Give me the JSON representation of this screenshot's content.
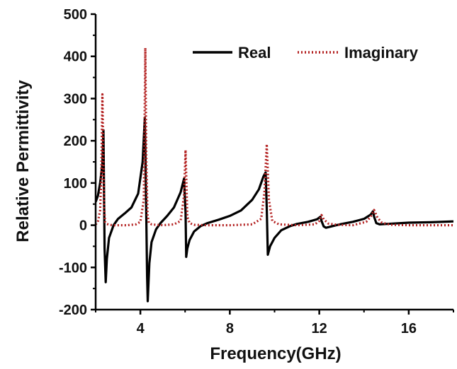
{
  "chart_data": {
    "type": "line",
    "title": "",
    "xlabel": "Frequency(GHz)",
    "ylabel": "Relative Permittivity",
    "xlim": [
      2,
      18
    ],
    "ylim": [
      -200,
      500
    ],
    "xticks": [
      4,
      8,
      12,
      16
    ],
    "yticks": [
      -200,
      -100,
      0,
      100,
      200,
      300,
      400,
      500
    ],
    "grid": false,
    "legend_position": "top-right",
    "series": [
      {
        "name": "Real",
        "color": "#000000",
        "style": "solid",
        "x": [
          2.0,
          2.1,
          2.2,
          2.3,
          2.35,
          2.4,
          2.45,
          2.5,
          2.6,
          2.8,
          3.0,
          3.3,
          3.6,
          3.9,
          4.1,
          4.2,
          4.25,
          4.3,
          4.33,
          4.4,
          4.5,
          4.7,
          4.9,
          5.2,
          5.5,
          5.8,
          5.95,
          6.02,
          6.05,
          6.1,
          6.2,
          6.4,
          6.7,
          7.0,
          7.5,
          8.0,
          8.5,
          9.0,
          9.3,
          9.5,
          9.6,
          9.65,
          9.7,
          9.8,
          10.0,
          10.3,
          10.7,
          11.0,
          11.5,
          11.9,
          12.05,
          12.1,
          12.2,
          12.3,
          12.6,
          13.0,
          13.5,
          14.0,
          14.3,
          14.4,
          14.45,
          14.55,
          14.7,
          15.0,
          16.0,
          17.0,
          18.0
        ],
        "values": [
          55,
          70,
          100,
          145,
          225,
          -55,
          -135,
          -80,
          -30,
          0,
          15,
          28,
          42,
          75,
          150,
          255,
          80,
          -120,
          -180,
          -90,
          -40,
          -10,
          5,
          22,
          42,
          78,
          110,
          30,
          -75,
          -55,
          -35,
          -15,
          -2,
          5,
          13,
          22,
          35,
          60,
          85,
          115,
          125,
          40,
          -70,
          -50,
          -30,
          -12,
          -2,
          3,
          8,
          14,
          20,
          10,
          -3,
          -6,
          -2,
          3,
          8,
          15,
          25,
          33,
          20,
          5,
          2,
          3,
          6,
          7,
          9
        ]
      },
      {
        "name": "Imaginary",
        "color": "#b32020",
        "style": "dotted",
        "x": [
          2.0,
          2.1,
          2.2,
          2.25,
          2.3,
          2.35,
          2.38,
          2.42,
          2.5,
          2.6,
          2.8,
          3.0,
          3.4,
          3.8,
          4.0,
          4.15,
          4.22,
          4.27,
          4.32,
          4.38,
          4.5,
          4.7,
          5.0,
          5.5,
          5.8,
          5.95,
          6.02,
          6.1,
          6.2,
          6.4,
          7.0,
          8.0,
          9.0,
          9.4,
          9.55,
          9.65,
          9.75,
          9.9,
          10.2,
          11.0,
          11.8,
          12.0,
          12.1,
          12.2,
          12.4,
          12.8,
          13.5,
          14.1,
          14.3,
          14.45,
          14.6,
          14.8,
          15.2,
          16.0,
          17.0,
          18.0
        ],
        "values": [
          2,
          8,
          35,
          110,
          310,
          140,
          40,
          8,
          3,
          1,
          0,
          0,
          0,
          2,
          8,
          60,
          420,
          150,
          25,
          6,
          2,
          1,
          0,
          2,
          10,
          70,
          178,
          20,
          5,
          1,
          0,
          0,
          2,
          15,
          80,
          192,
          60,
          10,
          2,
          0,
          2,
          10,
          24,
          14,
          4,
          1,
          0,
          8,
          20,
          36,
          18,
          6,
          1,
          0,
          0,
          0
        ]
      }
    ]
  }
}
